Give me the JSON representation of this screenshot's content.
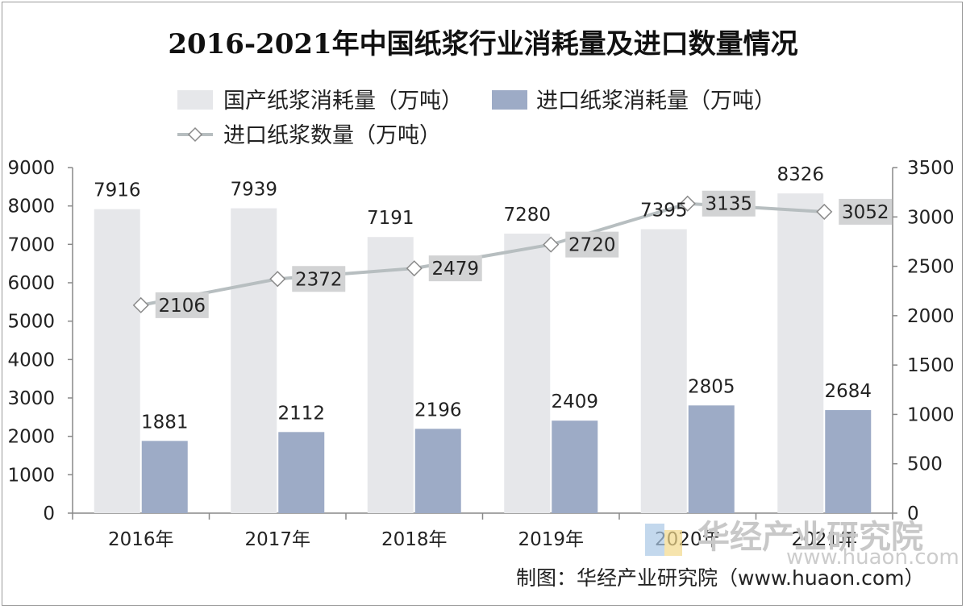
{
  "chart_data": {
    "type": "bar",
    "title": "2016-2021年中国纸浆行业消耗量及进口数量情况",
    "categories": [
      "2016年",
      "2017年",
      "2018年",
      "2019年",
      "2020年",
      "2021年"
    ],
    "series": [
      {
        "name": "国产纸浆消耗量（万吨）",
        "type": "bar",
        "axis": "left",
        "values": [
          7916,
          7939,
          7191,
          7280,
          7395,
          8326
        ],
        "color": "#e6e7ea"
      },
      {
        "name": "进口纸浆消耗量（万吨）",
        "type": "bar",
        "axis": "left",
        "values": [
          1881,
          2112,
          2196,
          2409,
          2805,
          2684
        ],
        "color": "#9dabc6"
      },
      {
        "name": "进口纸浆数量（万吨）",
        "type": "line",
        "axis": "right",
        "values": [
          2106,
          2372,
          2479,
          2720,
          3135,
          3052
        ],
        "color": "#b7bec0"
      }
    ],
    "y_left": {
      "min": 0,
      "max": 9000,
      "step": 1000,
      "ticks": [
        "0",
        "1000",
        "2000",
        "3000",
        "4000",
        "5000",
        "6000",
        "7000",
        "8000",
        "9000"
      ]
    },
    "y_right": {
      "min": 0,
      "max": 3500,
      "step": 500,
      "ticks": [
        "0",
        "500",
        "1000",
        "1500",
        "2000",
        "2500",
        "3000",
        "3500"
      ]
    },
    "legend_position": "top",
    "grid": false
  },
  "credit": "制图：华经产业研究院（www.huaon.com）",
  "watermark": {
    "text": "华经产业研究院",
    "url": "www.huaon.com"
  }
}
